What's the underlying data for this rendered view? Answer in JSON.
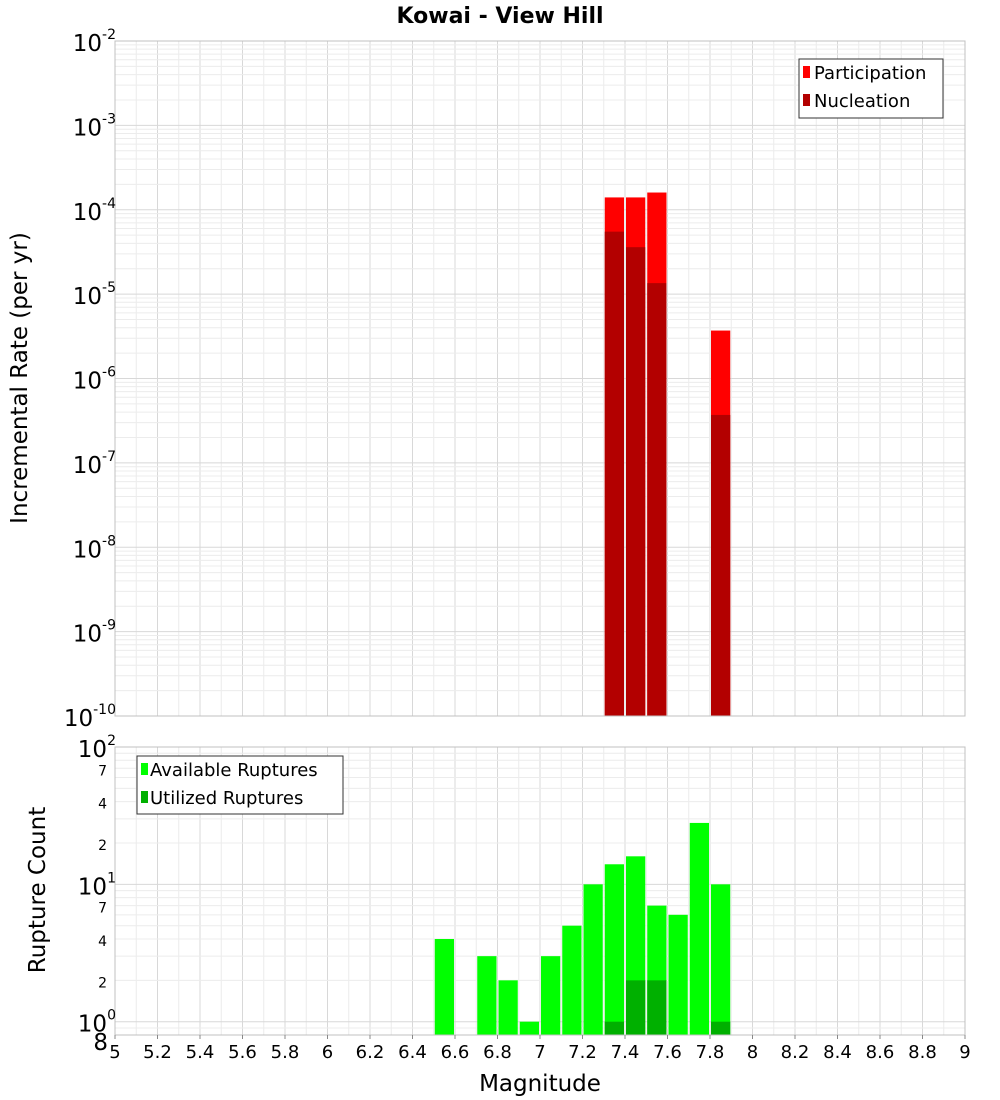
{
  "chart_data": [
    {
      "type": "bar",
      "title": "Kowai - View Hill",
      "xlabel": "",
      "ylabel": "Incremental Rate (per yr)",
      "yscale": "log",
      "xlim": [
        5,
        9
      ],
      "ylim": [
        1e-10,
        0.01
      ],
      "grid": true,
      "legend_position": "top-right",
      "y_ticks": [
        {
          "base": "10",
          "exp": "-2"
        },
        {
          "base": "10",
          "exp": "-3"
        },
        {
          "base": "10",
          "exp": "-4"
        },
        {
          "base": "10",
          "exp": "-5"
        },
        {
          "base": "10",
          "exp": "-6"
        },
        {
          "base": "10",
          "exp": "-7"
        },
        {
          "base": "10",
          "exp": "-8"
        },
        {
          "base": "10",
          "exp": "-9"
        },
        {
          "base": "10",
          "exp": "-10"
        }
      ],
      "series": [
        {
          "name": "Participation",
          "color": "#ff0000",
          "x": [
            7.35,
            7.45,
            7.55,
            7.85
          ],
          "values": [
            0.00014,
            0.00014,
            0.00016,
            3.7e-06
          ]
        },
        {
          "name": "Nucleation",
          "color": "#b30000",
          "x": [
            7.35,
            7.45,
            7.55,
            7.85
          ],
          "values": [
            5.5e-05,
            3.6e-05,
            1.35e-05,
            3.7e-07
          ]
        }
      ]
    },
    {
      "type": "bar",
      "xlabel": "Magnitude",
      "ylabel": "Rupture Count",
      "yscale": "log",
      "xlim": [
        5,
        9
      ],
      "ylim": [
        0.8,
        100
      ],
      "grid": true,
      "legend_position": "top-left",
      "x_ticks": [
        "5",
        "5.2",
        "5.4",
        "5.6",
        "5.8",
        "6",
        "6.2",
        "6.4",
        "6.6",
        "6.8",
        "7",
        "7.2",
        "7.4",
        "7.6",
        "7.8",
        "8",
        "8.2",
        "8.4",
        "8.6",
        "8.8",
        "9"
      ],
      "y_ticks": [
        {
          "base": "10",
          "exp": "2"
        },
        {
          "base": "10",
          "exp": "1"
        },
        {
          "base": "10",
          "exp": "0"
        }
      ],
      "y_minor_labels": [
        {
          "value": 70,
          "label": "7"
        },
        {
          "value": 40,
          "label": "4"
        },
        {
          "value": 20,
          "label": "2"
        },
        {
          "value": 7,
          "label": "7"
        },
        {
          "value": 4,
          "label": "4"
        },
        {
          "value": 2,
          "label": "2"
        },
        {
          "value": 0.8,
          "label": "8"
        }
      ],
      "series": [
        {
          "name": "Available Ruptures",
          "color": "#00ff00",
          "x": [
            6.55,
            6.75,
            6.85,
            6.95,
            7.05,
            7.15,
            7.25,
            7.35,
            7.45,
            7.55,
            7.65,
            7.75,
            7.85
          ],
          "values": [
            4,
            3,
            2,
            1,
            3,
            5,
            10,
            14,
            16,
            7,
            6,
            28,
            10
          ]
        },
        {
          "name": "Utilized Ruptures",
          "color": "#00b000",
          "x": [
            7.35,
            7.45,
            7.55,
            7.85
          ],
          "values": [
            1,
            2,
            2,
            1
          ]
        }
      ]
    }
  ]
}
